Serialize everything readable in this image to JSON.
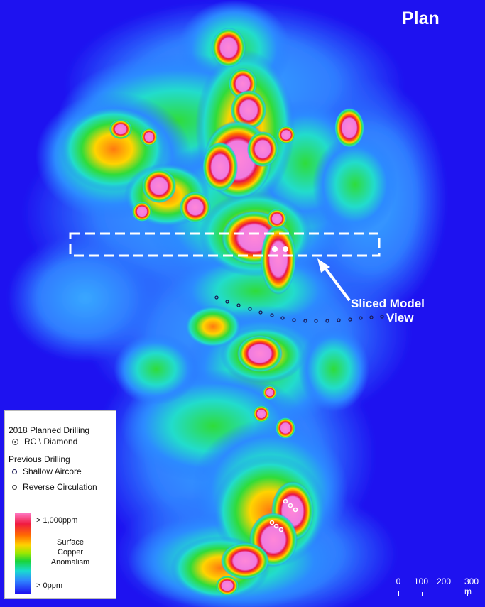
{
  "map": {
    "title": "Plan",
    "callout": {
      "line1": "Sliced Model",
      "line2": "View"
    },
    "colors": {
      "background": "#1e12f0",
      "ramp_high": "#ff7cc9",
      "ramp_red": "#f01a40",
      "ramp_orange": "#ff6a00",
      "ramp_yellow": "#ffd200",
      "ramp_green": "#19d43a",
      "ramp_cyan": "#19dbd0",
      "ramp_low": "#1e12f0"
    }
  },
  "legend": {
    "heading1": "2018 Planned Drilling",
    "item1": "RC \\ Diamond",
    "heading2": "Previous Drilling",
    "item2": "Shallow Aircore",
    "item3": "Reverse Circulation",
    "ramp_high": "> 1,000ppm",
    "ramp_title": [
      "Surface",
      "Copper",
      "Anomalism"
    ],
    "ramp_low": "> 0ppm"
  },
  "scalebar": {
    "labels": [
      "0",
      "100",
      "200",
      "300 m"
    ]
  }
}
